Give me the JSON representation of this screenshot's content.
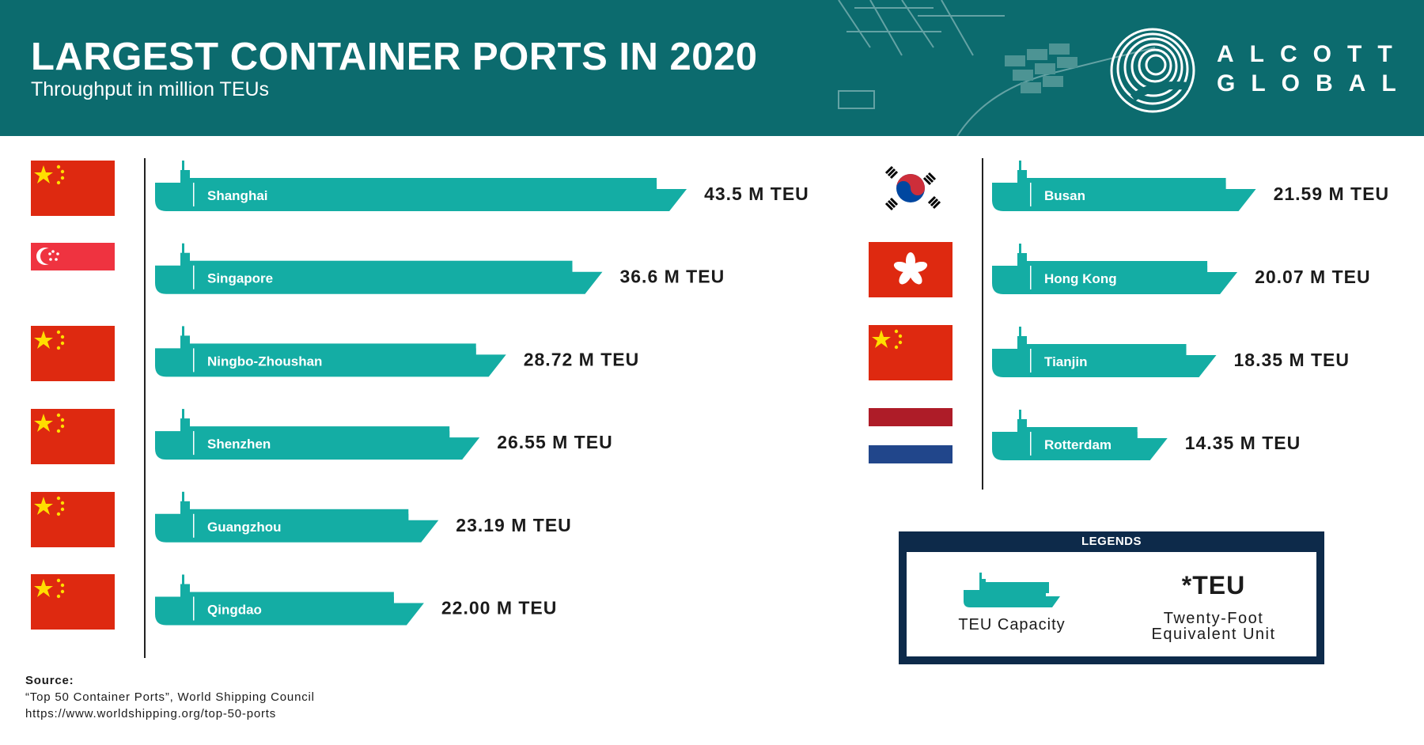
{
  "header": {
    "title": "LARGEST CONTAINER PORTS IN 2020",
    "subtitle": "Throughput in million TEUs",
    "logo_line1": "ALCOTT",
    "logo_line2": "GLOBAL",
    "background_color": "#0c6b6e"
  },
  "colors": {
    "ship": "#14ada4",
    "legend_border": "#0d2a4a",
    "text": "#1b1b1b"
  },
  "chart_data": [
    {
      "type": "bar",
      "orientation": "horizontal",
      "categories": [
        "Shanghai",
        "Singapore",
        "Ningbo-Zhoushan",
        "Shenzhen",
        "Guangzhou",
        "Qingdao"
      ],
      "values": [
        43.5,
        36.6,
        28.72,
        26.55,
        23.19,
        22.0
      ],
      "value_labels": [
        "43.5 M TEU",
        "36.6 M TEU",
        "28.72 M TEU",
        "26.55 M TEU",
        "23.19 M TEU",
        "22.00 M TEU"
      ],
      "flags": [
        "china",
        "singapore",
        "china",
        "china",
        "china",
        "china"
      ]
    },
    {
      "type": "bar",
      "orientation": "horizontal",
      "categories": [
        "Busan",
        "Hong Kong",
        "Tianjin",
        "Rotterdam"
      ],
      "values": [
        21.59,
        20.07,
        18.35,
        14.35
      ],
      "value_labels": [
        "21.59 M TEU",
        "20.07 M TEU",
        "18.35 M TEU",
        "14.35 M TEU"
      ],
      "flags": [
        "south-korea",
        "hong-kong",
        "china",
        "netherlands"
      ]
    }
  ],
  "legend": {
    "title": "LEGENDS",
    "ship_label": "TEU Capacity",
    "teu_symbol": "*TEU",
    "teu_definition_line1": "Twenty-Foot",
    "teu_definition_line2": "Equivalent Unit"
  },
  "source": {
    "label": "Source:",
    "line1": "“Top 50 Container Ports”, World Shipping Council",
    "line2": "https://www.worldshipping.org/top-50-ports"
  }
}
